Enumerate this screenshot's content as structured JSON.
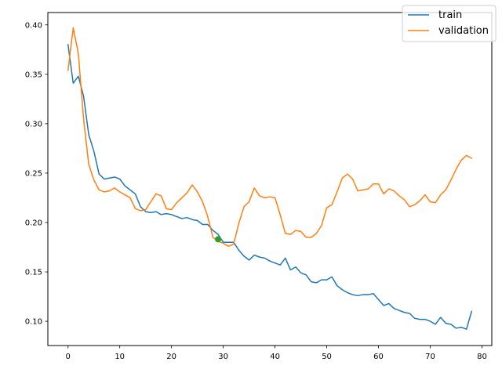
{
  "chart_data": {
    "type": "line",
    "title": "",
    "xlabel": "",
    "ylabel": "",
    "xlim": [
      -3.9,
      81.9
    ],
    "ylim": [
      0.0755,
      0.4125
    ],
    "x_ticks": [
      0,
      10,
      20,
      30,
      40,
      50,
      60,
      70,
      80
    ],
    "y_ticks": [
      0.1,
      0.15,
      0.2,
      0.25,
      0.3,
      0.35,
      0.4
    ],
    "y_tick_labels": [
      "0.10",
      "0.15",
      "0.20",
      "0.25",
      "0.30",
      "0.35",
      "0.40"
    ],
    "grid": false,
    "legend_placement": "top-right",
    "series": [
      {
        "name": "train",
        "color": "#1f77b4",
        "values": [
          0.38,
          0.341,
          0.348,
          0.328,
          0.289,
          0.272,
          0.249,
          0.244,
          0.245,
          0.246,
          0.244,
          0.237,
          0.233,
          0.229,
          0.216,
          0.211,
          0.21,
          0.211,
          0.208,
          0.209,
          0.208,
          0.206,
          0.204,
          0.205,
          0.203,
          0.202,
          0.198,
          0.198,
          0.192,
          0.188,
          0.18,
          0.18,
          0.18,
          0.172,
          0.166,
          0.162,
          0.167,
          0.165,
          0.164,
          0.161,
          0.159,
          0.157,
          0.164,
          0.152,
          0.155,
          0.149,
          0.147,
          0.14,
          0.139,
          0.142,
          0.142,
          0.145,
          0.136,
          0.132,
          0.129,
          0.127,
          0.126,
          0.127,
          0.127,
          0.128,
          0.122,
          0.116,
          0.118,
          0.113,
          0.111,
          0.109,
          0.108,
          0.103,
          0.102,
          0.102,
          0.1,
          0.097,
          0.104,
          0.098,
          0.097,
          0.093,
          0.094,
          0.092,
          0.11
        ]
      },
      {
        "name": "validation",
        "color": "#ff7f0e",
        "values": [
          0.354,
          0.397,
          0.371,
          0.305,
          0.259,
          0.243,
          0.233,
          0.231,
          0.232,
          0.235,
          0.231,
          0.228,
          0.225,
          0.214,
          0.212,
          0.213,
          0.221,
          0.229,
          0.227,
          0.214,
          0.213,
          0.22,
          0.225,
          0.23,
          0.238,
          0.231,
          0.221,
          0.206,
          0.185,
          0.181,
          0.179,
          0.176,
          0.178,
          0.199,
          0.216,
          0.221,
          0.235,
          0.227,
          0.225,
          0.226,
          0.225,
          0.208,
          0.189,
          0.188,
          0.192,
          0.191,
          0.185,
          0.185,
          0.189,
          0.197,
          0.215,
          0.218,
          0.231,
          0.245,
          0.249,
          0.244,
          0.232,
          0.233,
          0.234,
          0.239,
          0.239,
          0.229,
          0.234,
          0.232,
          0.227,
          0.223,
          0.216,
          0.218,
          0.222,
          0.228,
          0.221,
          0.22,
          0.228,
          0.233,
          0.243,
          0.254,
          0.263,
          0.268,
          0.265
        ]
      }
    ],
    "marker": {
      "x": 29,
      "y": 0.183,
      "color": "#2ca02c"
    }
  }
}
